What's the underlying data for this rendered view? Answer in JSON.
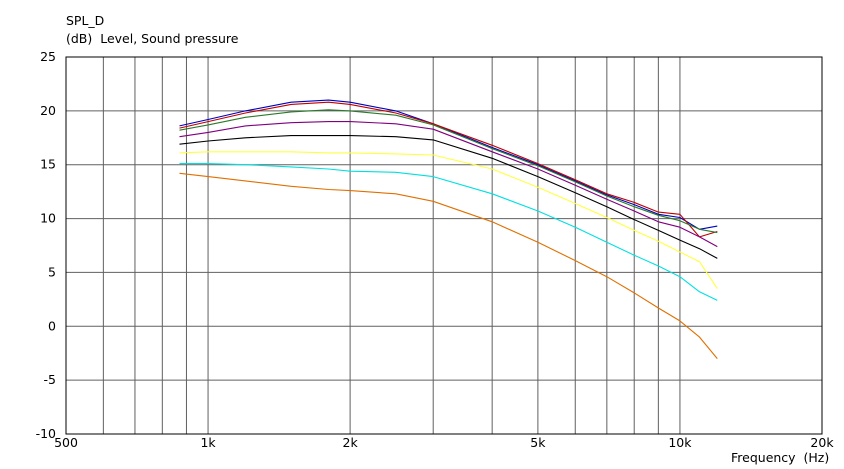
{
  "chart_data": {
    "type": "line",
    "title": "SPL_D",
    "ylabel": "(dB)  Level, Sound pressure",
    "xlabel": "Frequency  (Hz)",
    "xscale": "log",
    "xlim": [
      500,
      20000
    ],
    "ylim": [
      -10,
      25
    ],
    "grid": true,
    "x_tick_labels": [
      {
        "value": 500,
        "label": "500"
      },
      {
        "value": 1000,
        "label": "1k"
      },
      {
        "value": 2000,
        "label": "2k"
      },
      {
        "value": 5000,
        "label": "5k"
      },
      {
        "value": 10000,
        "label": "10k"
      },
      {
        "value": 20000,
        "label": "20k"
      }
    ],
    "x_grid": [
      600,
      700,
      800,
      900,
      1000,
      2000,
      3000,
      4000,
      5000,
      6000,
      7000,
      8000,
      9000,
      10000
    ],
    "y_ticks": [
      25,
      20,
      15,
      10,
      5,
      0,
      -5,
      -10
    ],
    "x": [
      870,
      1000,
      1200,
      1500,
      1800,
      2000,
      2500,
      3000,
      4000,
      5000,
      6000,
      7000,
      8000,
      9000,
      10000,
      11000,
      12000
    ],
    "series": [
      {
        "color": "#0000c0",
        "values": [
          18.6,
          19.2,
          20.0,
          20.8,
          21.0,
          20.8,
          20.0,
          18.8,
          16.6,
          15.0,
          13.5,
          12.2,
          11.3,
          10.4,
          10.1,
          9.0,
          9.3
        ]
      },
      {
        "color": "#c00000",
        "values": [
          18.4,
          19.0,
          19.8,
          20.6,
          20.8,
          20.6,
          19.8,
          18.8,
          16.8,
          15.1,
          13.6,
          12.3,
          11.5,
          10.6,
          10.4,
          8.3,
          8.8
        ]
      },
      {
        "color": "#2a7a2a",
        "values": [
          18.2,
          18.7,
          19.4,
          19.9,
          20.1,
          20.0,
          19.6,
          18.7,
          16.5,
          14.9,
          13.4,
          12.1,
          11.1,
          10.3,
          9.8,
          9.0,
          8.7
        ]
      },
      {
        "color": "#800080",
        "values": [
          17.6,
          18.0,
          18.6,
          18.9,
          19.0,
          19.0,
          18.8,
          18.3,
          16.2,
          14.6,
          13.1,
          11.8,
          10.7,
          9.7,
          9.2,
          8.3,
          7.4
        ]
      },
      {
        "color": "#000000",
        "values": [
          16.9,
          17.2,
          17.5,
          17.7,
          17.7,
          17.7,
          17.6,
          17.3,
          15.6,
          13.9,
          12.4,
          11.1,
          9.9,
          8.9,
          8.0,
          7.2,
          6.3
        ]
      },
      {
        "color": "#ffff40",
        "values": [
          16.1,
          16.2,
          16.2,
          16.2,
          16.1,
          16.1,
          16.0,
          15.9,
          14.6,
          12.9,
          11.4,
          10.1,
          8.9,
          7.9,
          6.9,
          6.0,
          3.5
        ]
      },
      {
        "color": "#00e0e0",
        "values": [
          15.1,
          15.1,
          15.0,
          14.8,
          14.6,
          14.4,
          14.3,
          13.9,
          12.3,
          10.7,
          9.2,
          7.8,
          6.6,
          5.6,
          4.6,
          3.2,
          2.4
        ]
      },
      {
        "color": "#e07000",
        "values": [
          14.2,
          13.9,
          13.5,
          13.0,
          12.7,
          12.6,
          12.3,
          11.6,
          9.7,
          7.8,
          6.1,
          4.6,
          3.1,
          1.7,
          0.5,
          -1.0,
          -3.0
        ]
      }
    ]
  }
}
